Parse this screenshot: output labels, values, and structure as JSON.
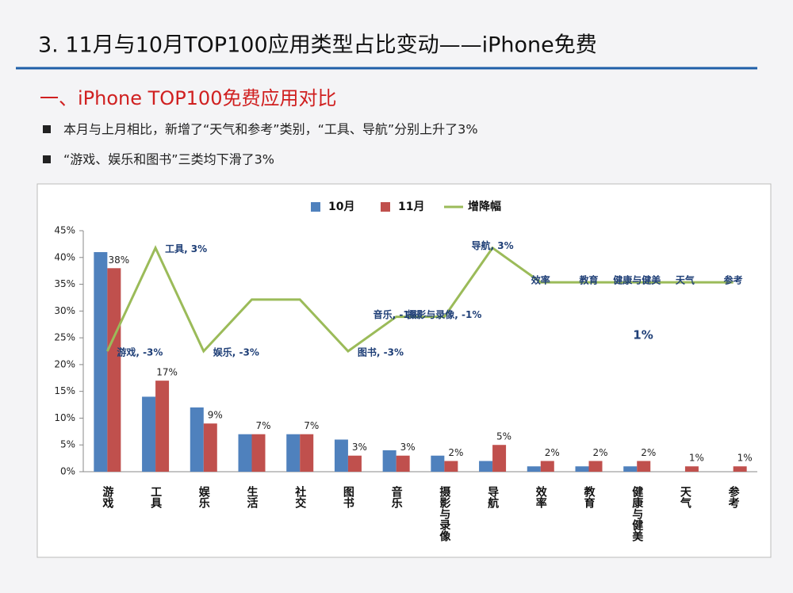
{
  "header": {
    "title": "3. 11月与10月TOP100应用类型占比变动——iPhone免费",
    "subtitle": "一、iPhone TOP100免费应用对比",
    "bullets": [
      "本月与上月相比，新增了“天气和参考”类别，“工具、导航”分别上升了3%",
      "“游戏、娱乐和图书”三类均下滑了3%"
    ]
  },
  "chart_data": {
    "type": "bar",
    "categories": [
      "游戏",
      "工具",
      "娱乐",
      "生活",
      "社交",
      "图书",
      "音乐",
      "摄影与录像",
      "导航",
      "效率",
      "教育",
      "健康与健美",
      "天气",
      "参考"
    ],
    "series": [
      {
        "name": "10月",
        "color": "#4f81bd",
        "values": [
          41,
          14,
          12,
          7,
          7,
          6,
          4,
          3,
          2,
          1,
          1,
          1,
          0,
          0
        ]
      },
      {
        "name": "11月",
        "color": "#c0504d",
        "values": [
          38,
          17,
          9,
          7,
          7,
          3,
          3,
          2,
          5,
          2,
          2,
          2,
          1,
          1
        ],
        "value_labels": [
          "38%",
          "17%",
          "9%",
          "7%",
          "7%",
          "3%",
          "3%",
          "2%",
          "5%",
          "2%",
          "2%",
          "2%",
          "1%",
          "1%"
        ]
      },
      {
        "name": "增降幅",
        "type": "line",
        "axis": "y2",
        "color": "#9bbb59",
        "values": [
          -3,
          3,
          -3,
          0,
          0,
          -3,
          -1,
          -1,
          3,
          1,
          1,
          1,
          1,
          1
        ],
        "value_labels": [
          "游戏, -3%",
          "工具, 3%",
          "娱乐, -3%",
          null,
          null,
          "图书, -3%",
          "音乐, -1%",
          "摄影与录像, -1%",
          "导航, 3%",
          "效率",
          "教育",
          "健康与健美",
          "天气",
          "参考"
        ]
      }
    ],
    "annotations": [
      "1%"
    ],
    "ylim": [
      0,
      45
    ],
    "yticks": [
      {
        "value": 0,
        "label": "0%"
      },
      {
        "value": 5,
        "label": "5%"
      },
      {
        "value": 10,
        "label": "10%"
      },
      {
        "value": 15,
        "label": "15%"
      },
      {
        "value": 20,
        "label": "20%"
      },
      {
        "value": 25,
        "label": "25%"
      },
      {
        "value": 30,
        "label": "30%"
      },
      {
        "value": 35,
        "label": "35%"
      },
      {
        "value": 40,
        "label": "40%"
      },
      {
        "value": 45,
        "label": "45%"
      }
    ],
    "y2lim": [
      -10,
      4
    ],
    "legend": "top"
  }
}
